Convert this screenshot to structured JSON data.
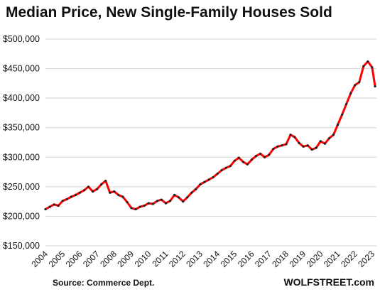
{
  "title": "Median Price, New Single-Family Houses Sold",
  "source": "Source: Commerce Dept.",
  "brand": "WOLFSTREET.com",
  "chart_data": {
    "type": "line",
    "title": "Median Price, New Single-Family Houses Sold",
    "xlabel": "",
    "ylabel": "",
    "grid": true,
    "ylim": [
      150000,
      500000
    ],
    "xlim": [
      2004,
      2023.25
    ],
    "y_ticks": [
      150000,
      200000,
      250000,
      300000,
      350000,
      400000,
      450000,
      500000
    ],
    "y_tick_labels": [
      "$150,000",
      "$200,000",
      "$250,000",
      "$300,000",
      "$350,000",
      "$400,000",
      "$450,000",
      "$500,000"
    ],
    "x_tick_labels": [
      "2004",
      "2005",
      "2006",
      "2007",
      "2008",
      "2009",
      "2010",
      "2011",
      "2012",
      "2013",
      "2014",
      "2015",
      "2016",
      "2017",
      "2018",
      "2019",
      "2020",
      "2021",
      "2022",
      "2023"
    ],
    "line_color": "#ff0000",
    "marker_color": "#222222",
    "series": [
      {
        "x": [
          2004.0,
          2004.25,
          2004.5,
          2004.75,
          2005.0,
          2005.25,
          2005.5,
          2005.75,
          2006.0,
          2006.25,
          2006.5,
          2006.75,
          2007.0,
          2007.25,
          2007.5,
          2007.75,
          2008.0,
          2008.25,
          2008.5,
          2008.75,
          2009.0,
          2009.25,
          2009.5,
          2009.75,
          2010.0,
          2010.25,
          2010.5,
          2010.75,
          2011.0,
          2011.25,
          2011.5,
          2011.75,
          2012.0,
          2012.25,
          2012.5,
          2012.75,
          2013.0,
          2013.25,
          2013.5,
          2013.75,
          2014.0,
          2014.25,
          2014.5,
          2014.75,
          2015.0,
          2015.25,
          2015.5,
          2015.75,
          2016.0,
          2016.25,
          2016.5,
          2016.75,
          2017.0,
          2017.25,
          2017.5,
          2017.75,
          2018.0,
          2018.25,
          2018.5,
          2018.75,
          2019.0,
          2019.25,
          2019.5,
          2019.75,
          2020.0,
          2020.25,
          2020.5,
          2020.75,
          2021.0,
          2021.25,
          2021.5,
          2021.75,
          2022.0,
          2022.25,
          2022.5,
          2022.75,
          2023.0,
          2023.17
        ],
        "values": [
          212000,
          216000,
          220000,
          218000,
          226000,
          229000,
          233000,
          236000,
          240000,
          244000,
          250000,
          242000,
          246000,
          254000,
          260000,
          240000,
          242000,
          236000,
          233000,
          224000,
          214000,
          212000,
          216000,
          218000,
          222000,
          221000,
          226000,
          228000,
          222000,
          226000,
          236000,
          232000,
          225000,
          232000,
          240000,
          246000,
          254000,
          258000,
          262000,
          266000,
          272000,
          278000,
          282000,
          285000,
          294000,
          299000,
          292000,
          288000,
          296000,
          302000,
          306000,
          300000,
          304000,
          314000,
          318000,
          320000,
          322000,
          338000,
          334000,
          324000,
          318000,
          320000,
          313000,
          316000,
          327000,
          323000,
          332000,
          338000,
          355000,
          372000,
          390000,
          408000,
          422000,
          427000,
          454000,
          462000,
          452000,
          420000
        ]
      }
    ]
  }
}
